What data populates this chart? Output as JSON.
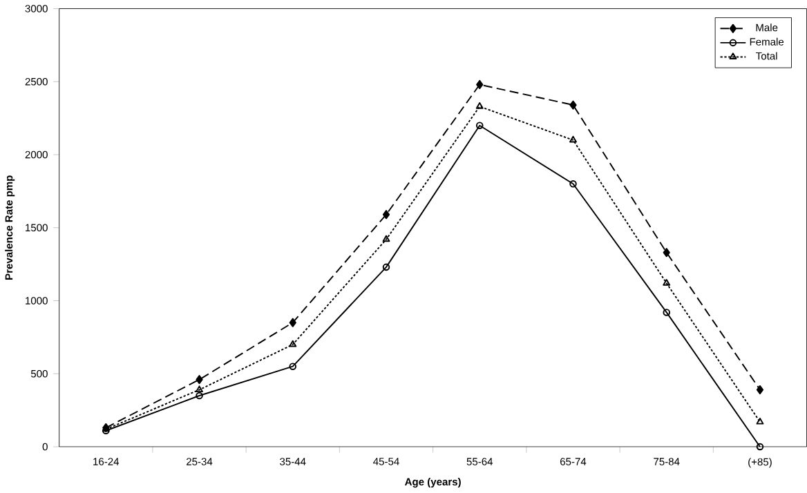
{
  "chart_data": {
    "type": "line",
    "xlabel": "Age (years)",
    "ylabel": "Prevalence Rate pmp",
    "categories": [
      "16-24",
      "25-34",
      "35-44",
      "45-54",
      "55-64",
      "65-74",
      "75-84",
      "(+85)"
    ],
    "series": [
      {
        "name": "Male",
        "color": "#000000",
        "marker": "diamond",
        "line_style": "dashed",
        "values": [
          130,
          460,
          850,
          1590,
          2480,
          2340,
          1330,
          390
        ]
      },
      {
        "name": "Female",
        "color": "#000000",
        "marker": "circle",
        "line_style": "solid",
        "values": [
          110,
          350,
          550,
          1230,
          2200,
          1800,
          920,
          0
        ]
      },
      {
        "name": "Total",
        "color": "#000000",
        "marker": "triangle",
        "line_style": "dotted",
        "values": [
          120,
          390,
          700,
          1420,
          2330,
          2100,
          1120,
          170
        ]
      }
    ],
    "ylim": [
      0,
      3000
    ],
    "yticks": [
      0,
      500,
      1000,
      1500,
      2000,
      2500,
      3000
    ],
    "grid": false,
    "legend": "top right"
  }
}
